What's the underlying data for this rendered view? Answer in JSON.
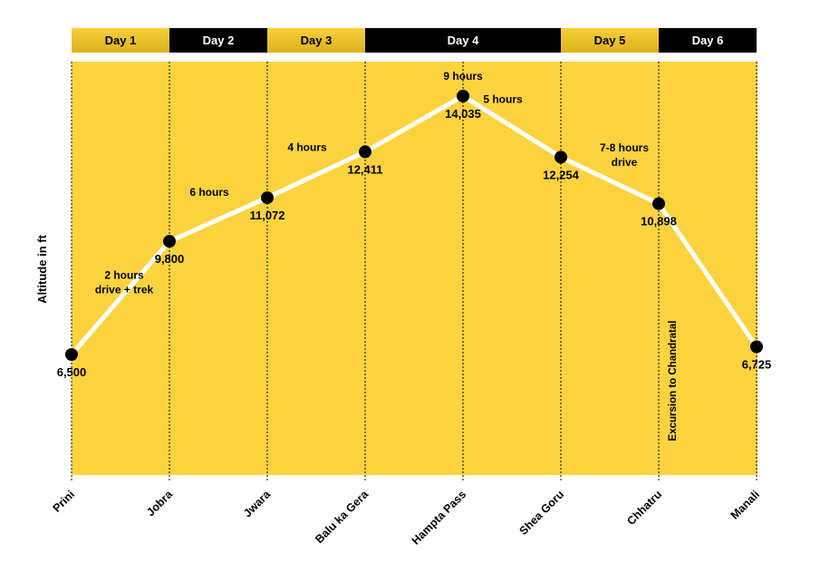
{
  "chart_data": {
    "type": "line",
    "ylabel": "Altitude in ft",
    "xlabel": "",
    "categories": [
      "Prini",
      "Jobra",
      "Jwara",
      "Balu ka Gera",
      "Hampta Pass",
      "Shea Goru",
      "Chhatru",
      "Manali"
    ],
    "values": [
      6500,
      9800,
      11072,
      12411,
      14035,
      12254,
      10898,
      6725
    ],
    "value_labels": [
      "6,500",
      "9,800",
      "11,072",
      "12,411",
      "14,035",
      "12,254",
      "10,898",
      "6,725"
    ],
    "ylim": [
      4000,
      15000
    ],
    "days": [
      {
        "label": "Day 1",
        "start": 0,
        "end": 1,
        "style": "gold"
      },
      {
        "label": "Day 2",
        "start": 1,
        "end": 2,
        "style": "black"
      },
      {
        "label": "Day 3",
        "start": 2,
        "end": 3,
        "style": "gold"
      },
      {
        "label": "Day 4",
        "start": 3,
        "end": 5,
        "style": "black"
      },
      {
        "label": "Day 5",
        "start": 5,
        "end": 6,
        "style": "gold"
      },
      {
        "label": "Day 6",
        "start": 6,
        "end": 7,
        "style": "black"
      }
    ],
    "durations": [
      {
        "lines": [
          "2 hours",
          "drive + trek"
        ]
      },
      {
        "lines": [
          "6 hours"
        ]
      },
      {
        "lines": [
          "4 hours"
        ]
      },
      {
        "lines": [
          "9 hours"
        ]
      },
      {
        "lines": [
          "5 hours"
        ]
      },
      {
        "lines": [
          "7-8 hours",
          "drive"
        ]
      }
    ],
    "annotation": "Excursion to Chandratal",
    "grid": false,
    "colors": {
      "background": "#FCD33F",
      "line": "#FFFFFF",
      "marker": "#000000",
      "band_gold": "#DDB21E",
      "band_gold_light": "#F6CF3A",
      "band_black": "#000000"
    }
  }
}
